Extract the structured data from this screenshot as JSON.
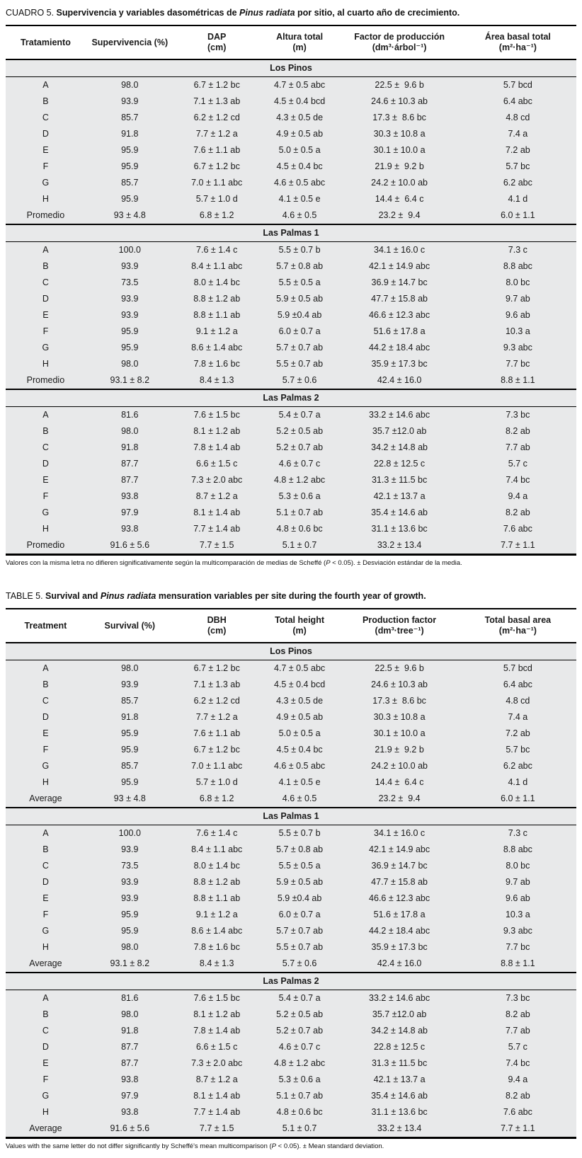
{
  "page": {
    "band_color": "#e8e9ea",
    "rule_color": "#000000",
    "background": "#ffffff"
  },
  "tables": [
    {
      "caption": {
        "label": "CUADRO 5.",
        "before_species": " Supervivencia y variables dasométricas de ",
        "species": "Pinus radiata",
        "after_species": " por sitio, al cuarto año de crecimiento."
      },
      "columns": [
        {
          "label": "Tratamiento",
          "unit": ""
        },
        {
          "label": "Supervivencia (%)",
          "unit": ""
        },
        {
          "label": "DAP",
          "unit": "(cm)"
        },
        {
          "label": "Altura total",
          "unit": "(m)"
        },
        {
          "label": "Factor de producción",
          "unit": "(dm³·árbol⁻¹)"
        },
        {
          "label": "Área basal total",
          "unit": "(m²·ha⁻¹)"
        }
      ],
      "sections": [
        {
          "name": "Los Pinos",
          "rows": [
            [
              "A",
              "98.0",
              "6.7 ± 1.2 bc",
              "4.7 ± 0.5 abc",
              "22.5 ±  9.6 b",
              "5.7 bcd"
            ],
            [
              "B",
              "93.9",
              "7.1 ± 1.3 ab",
              "4.5 ± 0.4 bcd",
              "24.6 ± 10.3 ab",
              "6.4 abc"
            ],
            [
              "C",
              "85.7",
              "6.2 ± 1.2 cd",
              "4.3 ± 0.5 de",
              "17.3 ±  8.6 bc",
              "4.8 cd"
            ],
            [
              "D",
              "91.8",
              "7.7 ± 1.2 a",
              "4.9 ± 0.5 ab",
              "30.3 ± 10.8 a",
              "7.4 a"
            ],
            [
              "E",
              "95.9",
              "7.6 ± 1.1 ab",
              "5.0 ± 0.5 a",
              "30.1 ± 10.0 a",
              "7.2 ab"
            ],
            [
              "F",
              "95.9",
              "6.7 ± 1.2 bc",
              "4.5 ± 0.4 bc",
              "21.9 ±  9.2 b",
              "5.7 bc"
            ],
            [
              "G",
              "85.7",
              "7.0 ± 1.1 abc",
              "4.6 ± 0.5 abc",
              "24.2 ± 10.0 ab",
              "6.2 abc"
            ],
            [
              "H",
              "95.9",
              "5.7 ± 1.0 d",
              "4.1 ± 0.5 e",
              "14.4 ±  6.4 c",
              "4.1 d"
            ],
            [
              "Promedio",
              "93 ± 4.8",
              "6.8 ± 1.2",
              "4.6 ± 0.5",
              "23.2 ±  9.4",
              "6.0 ± 1.1"
            ]
          ]
        },
        {
          "name": "Las Palmas 1",
          "rows": [
            [
              "A",
              "100.0",
              "7.6 ± 1.4 c",
              "5.5 ± 0.7 b",
              "34.1 ± 16.0 c",
              "7.3 c"
            ],
            [
              "B",
              "93.9",
              "8.4 ± 1.1 abc",
              "5.7 ± 0.8 ab",
              "42.1 ± 14.9 abc",
              "8.8 abc"
            ],
            [
              "C",
              "73.5",
              "8.0 ± 1.4 bc",
              "5.5 ± 0.5 a",
              "36.9 ± 14.7 bc",
              "8.0 bc"
            ],
            [
              "D",
              "93.9",
              "8.8 ± 1.2 ab",
              "5.9 ± 0.5 ab",
              "47.7 ± 15.8 ab",
              "9.7 ab"
            ],
            [
              "E",
              "93.9",
              "8.8 ± 1.1 ab",
              "5.9 ±0.4 ab",
              "46.6 ± 12.3 abc",
              "9.6 ab"
            ],
            [
              "F",
              "95.9",
              "9.1 ± 1.2 a",
              "6.0 ± 0.7 a",
              "51.6 ± 17.8 a",
              "10.3 a"
            ],
            [
              "G",
              "95.9",
              "8.6 ± 1.4 abc",
              "5.7 ± 0.7 ab",
              "44.2 ± 18.4 abc",
              "9.3 abc"
            ],
            [
              "H",
              "98.0",
              "7.8 ± 1.6 bc",
              "5.5 ± 0.7 ab",
              "35.9 ± 17.3 bc",
              "7.7 bc"
            ],
            [
              "Promedio",
              "93.1 ± 8.2",
              "8.4 ± 1.3",
              "5.7 ± 0.6",
              "42.4 ± 16.0",
              "8.8 ± 1.1"
            ]
          ]
        },
        {
          "name": "Las Palmas 2",
          "rows": [
            [
              "A",
              "81.6",
              "7.6 ± 1.5 bc",
              "5.4 ± 0.7 a",
              "33.2 ± 14.6 abc",
              "7.3 bc"
            ],
            [
              "B",
              "98.0",
              "8.1 ± 1.2 ab",
              "5.2 ± 0.5 ab",
              "35.7 ±12.0 ab",
              "8.2 ab"
            ],
            [
              "C",
              "91.8",
              "7.8 ± 1.4 ab",
              "5.2 ± 0.7 ab",
              "34.2 ± 14.8 ab",
              "7.7 ab"
            ],
            [
              "D",
              "87.7",
              "6.6 ± 1.5 c",
              "4.6 ± 0.7 c",
              "22.8 ± 12.5 c",
              "5.7 c"
            ],
            [
              "E",
              "87.7",
              "7.3 ± 2.0 abc",
              "4.8 ± 1.2 abc",
              "31.3 ± 11.5 bc",
              "7.4 bc"
            ],
            [
              "F",
              "93.8",
              "8.7 ± 1.2 a",
              "5.3 ± 0.6 a",
              "42.1 ± 13.7 a",
              "9.4 a"
            ],
            [
              "G",
              "97.9",
              "8.1 ± 1.4 ab",
              "5.1 ± 0.7 ab",
              "35.4 ± 14.6 ab",
              "8.2 ab"
            ],
            [
              "H",
              "93.8",
              "7.7 ± 1.4 ab",
              "4.8 ± 0.6 bc",
              "31.1 ± 13.6 bc",
              "7.6 abc"
            ],
            [
              "Promedio",
              "91.6 ± 5.6",
              "7.7 ± 1.5",
              "5.1 ± 0.7",
              "33.2 ± 13.4",
              "7.7 ± 1.1"
            ]
          ]
        }
      ],
      "footnote": {
        "before_p": "Valores con la misma letra no difieren significativamente según la multicomparación de medias de Scheffé (",
        "p": "P",
        "after_p": " < 0.05). ± Desviación estándar de la media."
      }
    },
    {
      "caption": {
        "label": "TABLE 5.",
        "before_species": " Survival and ",
        "species": "Pinus radiata",
        "after_species": " mensuration variables per site during the fourth year of growth."
      },
      "columns": [
        {
          "label": "Treatment",
          "unit": ""
        },
        {
          "label": "Survival (%)",
          "unit": ""
        },
        {
          "label": "DBH",
          "unit": "(cm)"
        },
        {
          "label": "Total height",
          "unit": "(m)"
        },
        {
          "label": "Production factor",
          "unit": "(dm³·tree⁻¹)"
        },
        {
          "label": "Total basal area",
          "unit": "(m²·ha⁻¹)"
        }
      ],
      "sections": [
        {
          "name": "Los Pinos",
          "rows": [
            [
              "A",
              "98.0",
              "6.7 ± 1.2 bc",
              "4.7 ± 0.5 abc",
              "22.5 ±  9.6 b",
              "5.7 bcd"
            ],
            [
              "B",
              "93.9",
              "7.1 ± 1.3 ab",
              "4.5 ± 0.4 bcd",
              "24.6 ± 10.3 ab",
              "6.4 abc"
            ],
            [
              "C",
              "85.7",
              "6.2 ± 1.2 cd",
              "4.3 ± 0.5 de",
              "17.3 ±  8.6 bc",
              "4.8 cd"
            ],
            [
              "D",
              "91.8",
              "7.7 ± 1.2 a",
              "4.9 ± 0.5 ab",
              "30.3 ± 10.8 a",
              "7.4 a"
            ],
            [
              "E",
              "95.9",
              "7.6 ± 1.1 ab",
              "5.0 ± 0.5 a",
              "30.1 ± 10.0 a",
              "7.2 ab"
            ],
            [
              "F",
              "95.9",
              "6.7 ± 1.2 bc",
              "4.5 ± 0.4 bc",
              "21.9 ±  9.2 b",
              "5.7 bc"
            ],
            [
              "G",
              "85.7",
              "7.0 ± 1.1 abc",
              "4.6 ± 0.5 abc",
              "24.2 ± 10.0 ab",
              "6.2 abc"
            ],
            [
              "H",
              "95.9",
              "5.7 ± 1.0 d",
              "4.1 ± 0.5 e",
              "14.4 ±  6.4 c",
              "4.1 d"
            ],
            [
              "Average",
              "93 ± 4.8",
              "6.8 ± 1.2",
              "4.6 ± 0.5",
              "23.2 ±  9.4",
              "6.0 ± 1.1"
            ]
          ]
        },
        {
          "name": "Las Palmas 1",
          "rows": [
            [
              "A",
              "100.0",
              "7.6 ± 1.4 c",
              "5.5 ± 0.7 b",
              "34.1 ± 16.0 c",
              "7.3 c"
            ],
            [
              "B",
              "93.9",
              "8.4 ± 1.1 abc",
              "5.7 ± 0.8 ab",
              "42.1 ± 14.9 abc",
              "8.8 abc"
            ],
            [
              "C",
              "73.5",
              "8.0 ± 1.4 bc",
              "5.5 ± 0.5 a",
              "36.9 ± 14.7 bc",
              "8.0 bc"
            ],
            [
              "D",
              "93.9",
              "8.8 ± 1.2 ab",
              "5.9 ± 0.5 ab",
              "47.7 ± 15.8 ab",
              "9.7 ab"
            ],
            [
              "E",
              "93.9",
              "8.8 ± 1.1 ab",
              "5.9 ±0.4 ab",
              "46.6 ± 12.3 abc",
              "9.6 ab"
            ],
            [
              "F",
              "95.9",
              "9.1 ± 1.2 a",
              "6.0 ± 0.7 a",
              "51.6 ± 17.8 a",
              "10.3 a"
            ],
            [
              "G",
              "95.9",
              "8.6 ± 1.4 abc",
              "5.7 ± 0.7 ab",
              "44.2 ± 18.4 abc",
              "9.3 abc"
            ],
            [
              "H",
              "98.0",
              "7.8 ± 1.6 bc",
              "5.5 ± 0.7 ab",
              "35.9 ± 17.3 bc",
              "7.7 bc"
            ],
            [
              "Average",
              "93.1 ± 8.2",
              "8.4 ± 1.3",
              "5.7 ± 0.6",
              "42.4 ± 16.0",
              "8.8 ± 1.1"
            ]
          ]
        },
        {
          "name": "Las Palmas 2",
          "rows": [
            [
              "A",
              "81.6",
              "7.6 ± 1.5 bc",
              "5.4 ± 0.7 a",
              "33.2 ± 14.6 abc",
              "7.3 bc"
            ],
            [
              "B",
              "98.0",
              "8.1 ± 1.2 ab",
              "5.2 ± 0.5 ab",
              "35.7 ±12.0 ab",
              "8.2 ab"
            ],
            [
              "C",
              "91.8",
              "7.8 ± 1.4 ab",
              "5.2 ± 0.7 ab",
              "34.2 ± 14.8 ab",
              "7.7 ab"
            ],
            [
              "D",
              "87.7",
              "6.6 ± 1.5 c",
              "4.6 ± 0.7 c",
              "22.8 ± 12.5 c",
              "5.7 c"
            ],
            [
              "E",
              "87.7",
              "7.3 ± 2.0 abc",
              "4.8 ± 1.2 abc",
              "31.3 ± 11.5 bc",
              "7.4 bc"
            ],
            [
              "F",
              "93.8",
              "8.7 ± 1.2 a",
              "5.3 ± 0.6 a",
              "42.1 ± 13.7 a",
              "9.4 a"
            ],
            [
              "G",
              "97.9",
              "8.1 ± 1.4 ab",
              "5.1 ± 0.7 ab",
              "35.4 ± 14.6 ab",
              "8.2 ab"
            ],
            [
              "H",
              "93.8",
              "7.7 ± 1.4 ab",
              "4.8 ± 0.6 bc",
              "31.1 ± 13.6 bc",
              "7.6 abc"
            ],
            [
              "Average",
              "91.6 ± 5.6",
              "7.7 ± 1.5",
              "5.1 ± 0.7",
              "33.2 ± 13.4",
              "7.7 ± 1.1"
            ]
          ]
        }
      ],
      "footnote": {
        "before_p": "Values with the same letter do not differ significantly by Scheffé's mean multicomparison (",
        "p": "P",
        "after_p": " < 0.05). ± Mean standard deviation."
      }
    }
  ]
}
